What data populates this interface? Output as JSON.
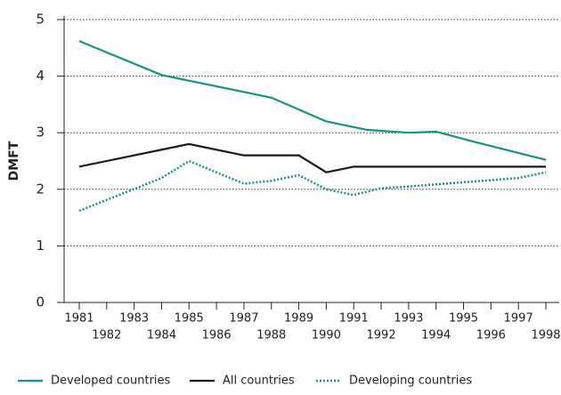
{
  "chart_data": {
    "type": "line",
    "y_label": "DMFT",
    "xlim": [
      1981,
      1998
    ],
    "xticks": [
      1981,
      1982,
      1983,
      1984,
      1985,
      1986,
      1987,
      1988,
      1989,
      1990,
      1991,
      1992,
      1993,
      1994,
      1995,
      1996,
      1997,
      1998
    ],
    "ylim": [
      0,
      5
    ],
    "yticks": [
      0,
      1,
      2,
      3,
      4,
      5
    ],
    "grid": true,
    "legend": "bottom",
    "series": [
      {
        "name": "Developed countries",
        "color": "#1a9080",
        "style": "solid",
        "x": [
          1981,
          1984,
          1988,
          1990,
          1991.5,
          1993,
          1994,
          1995.3,
          1998
        ],
        "values": [
          4.62,
          4.02,
          3.62,
          3.2,
          3.05,
          3.0,
          3.02,
          2.85,
          2.52
        ]
      },
      {
        "name": "All countries",
        "color": "#1a1a1a",
        "style": "solid",
        "x": [
          1981,
          1985,
          1987,
          1989,
          1990,
          1991,
          1998
        ],
        "values": [
          2.4,
          2.8,
          2.6,
          2.6,
          2.3,
          2.4,
          2.4
        ]
      },
      {
        "name": "Developing countries",
        "color": "#1a9080",
        "style": "dotted",
        "x": [
          1981,
          1984,
          1985,
          1987,
          1988,
          1989,
          1990,
          1991,
          1992,
          1993,
          1997,
          1998
        ],
        "values": [
          1.62,
          2.2,
          2.5,
          2.1,
          2.15,
          2.25,
          2.0,
          1.9,
          2.02,
          2.05,
          2.2,
          2.3
        ]
      }
    ]
  }
}
